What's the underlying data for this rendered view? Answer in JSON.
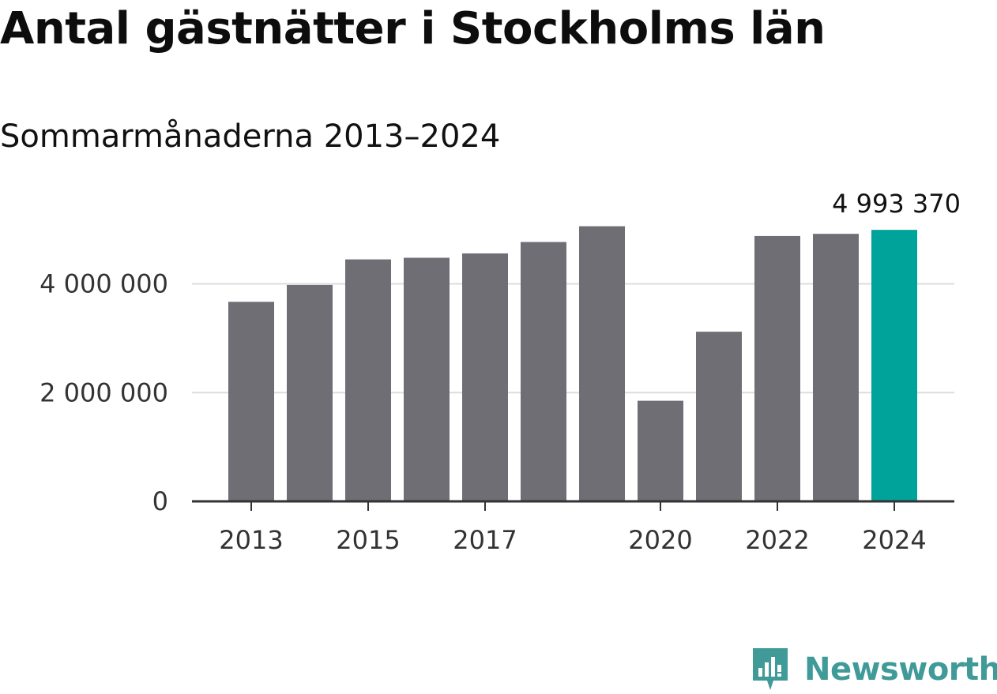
{
  "header": {
    "title": "Antal gästnätter i Stockholms län",
    "subtitle": "Sommarmånaderna 2013–2024"
  },
  "chart_data": {
    "type": "bar",
    "title": "Antal gästnätter i Stockholms län",
    "subtitle": "Sommarmånaderna 2013–2024",
    "categories": [
      "2013",
      "2014",
      "2015",
      "2016",
      "2017",
      "2018",
      "2019",
      "2020",
      "2021",
      "2022",
      "2023",
      "2024"
    ],
    "values": [
      3670000,
      3980000,
      4450000,
      4480000,
      4560000,
      4770000,
      5060000,
      1850000,
      3120000,
      4880000,
      4920000,
      4993370
    ],
    "x_tick_labels": [
      "2013",
      "",
      "2015",
      "",
      "2017",
      "",
      "",
      "2020",
      "",
      "2022",
      "",
      "2024"
    ],
    "y_ticks": [
      0,
      2000000,
      4000000
    ],
    "y_tick_labels": [
      "0",
      "2 000 000",
      "4 000 000"
    ],
    "ylim": [
      0,
      5300000
    ],
    "grid": true,
    "highlight_index": 11,
    "highlight_label": "4 993 370",
    "colors": {
      "bar": "#6f6e74",
      "highlight": "#00a39a",
      "grid": "#dddddd",
      "axis": "#333333"
    },
    "xlabel": "",
    "ylabel": ""
  },
  "logo": {
    "text": "Newsworthy",
    "icon": "bar-chart-speech-bubble-icon",
    "color": "#3f9a98"
  }
}
